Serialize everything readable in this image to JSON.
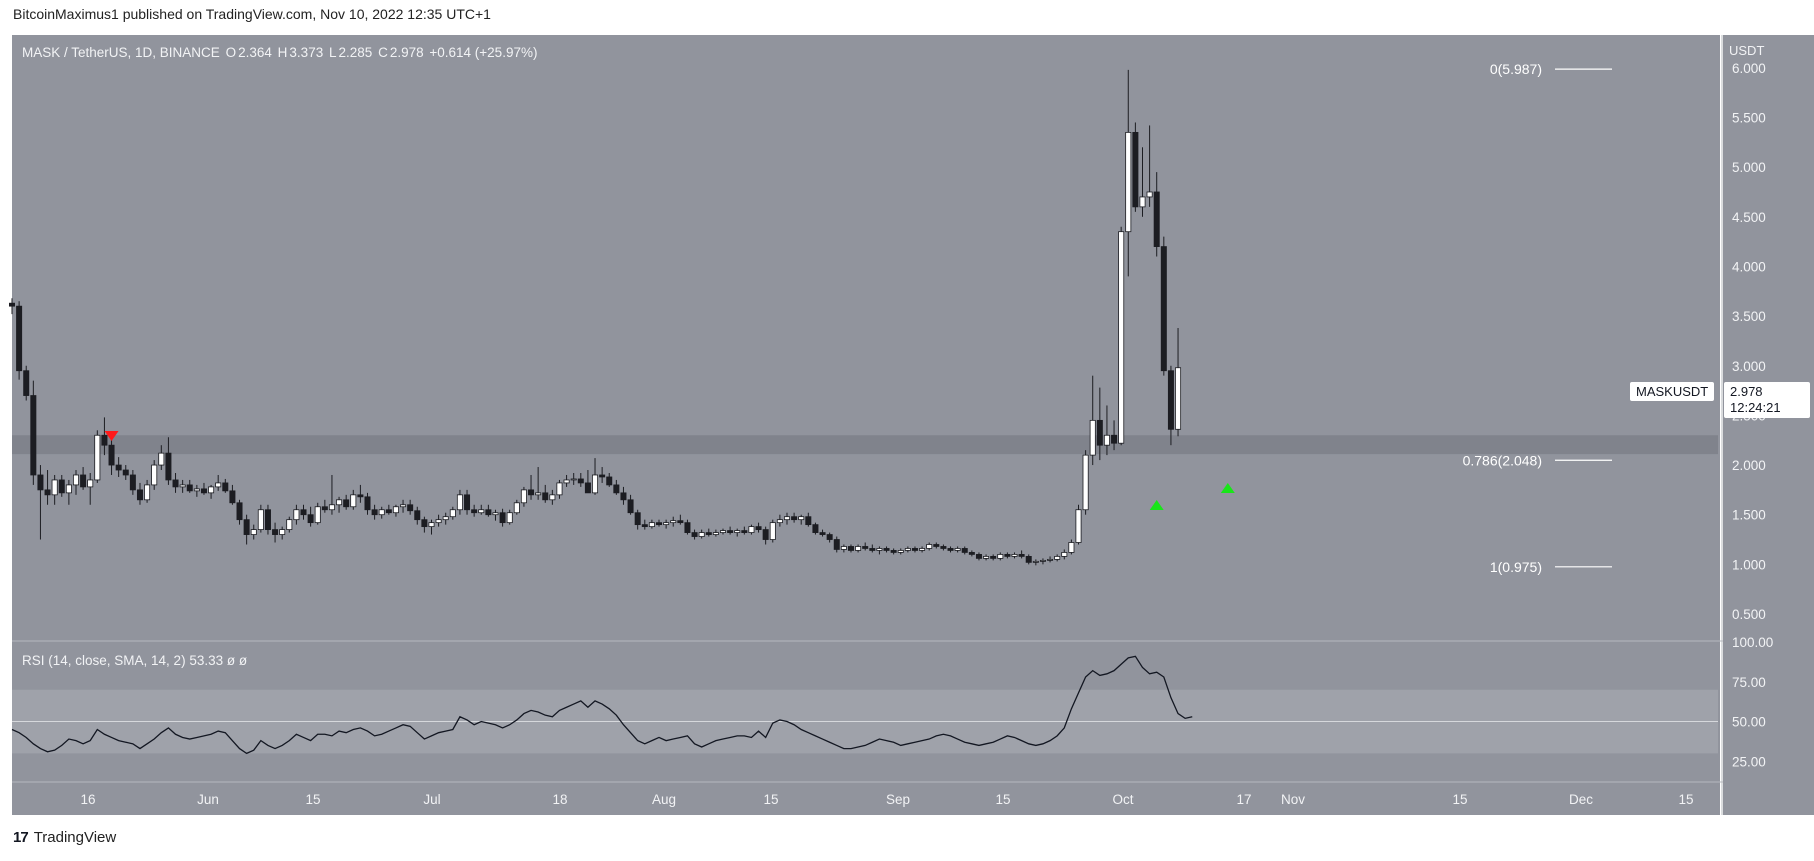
{
  "header": {
    "publisher": "BitcoinMaximus1 published on TradingView.com, Nov 10, 2022 12:35 UTC+1"
  },
  "footer": {
    "brand": "TradingView",
    "logo_text": "17"
  },
  "legend": {
    "symbol": "MASK / TetherUS, 1D, BINANCE",
    "o_label": "O",
    "o": "2.364",
    "h_label": "H",
    "h": "3.373",
    "l_label": "L",
    "l": "2.285",
    "c_label": "C",
    "c": "2.978",
    "change": "+0.614 (+25.97%)"
  },
  "rsi_legend": {
    "label": "RSI (14, close, SMA, 14, 2)",
    "value": "53.33",
    "na1": "ø",
    "na2": "ø"
  },
  "price_axis": {
    "unit": "USDT",
    "ticker": "MASKUSDT",
    "last": "2.978",
    "countdown": "12:24:21"
  },
  "fib": [
    {
      "label": "0(5.987)",
      "value": 5.987
    },
    {
      "label": "0.786(2.048)",
      "value": 2.048
    },
    {
      "label": "1(0.975)",
      "value": 0.975
    }
  ],
  "colors": {
    "panel": "#91949d",
    "up": "#ffffff",
    "down": "#1c1d22",
    "arrow_down": "#ff1a1a",
    "arrow_up": "#19e619",
    "support_zone": "#7d8089"
  },
  "chart_data": [
    {
      "type": "candlestick",
      "title": "MASK / TetherUS, 1D, BINANCE",
      "ylim": [
        0.5,
        6.4
      ],
      "y_ticks": [
        "0.500",
        "1.000",
        "1.500",
        "2.000",
        "2.500",
        "3.000",
        "3.500",
        "4.000",
        "4.500",
        "5.000",
        "5.500",
        "6.000"
      ],
      "x_ticks": [
        "16",
        "Jun",
        "15",
        "Jul",
        "18",
        "Aug",
        "15",
        "Sep",
        "15",
        "Oct",
        "17",
        "Nov",
        "15",
        "Dec",
        "15"
      ],
      "support_zone": [
        2.11,
        2.3
      ],
      "candles": [
        [
          3.63,
          3.68,
          3.52,
          3.6
        ],
        [
          3.6,
          3.65,
          2.86,
          2.95
        ],
        [
          2.95,
          3.0,
          2.65,
          2.7
        ],
        [
          2.7,
          2.85,
          1.8,
          1.9
        ],
        [
          1.9,
          2.0,
          1.25,
          1.75
        ],
        [
          1.75,
          1.95,
          1.6,
          1.7
        ],
        [
          1.7,
          1.9,
          1.6,
          1.85
        ],
        [
          1.85,
          1.9,
          1.68,
          1.72
        ],
        [
          1.72,
          1.85,
          1.6,
          1.8
        ],
        [
          1.8,
          1.95,
          1.7,
          1.9
        ],
        [
          1.9,
          1.98,
          1.75,
          1.78
        ],
        [
          1.78,
          1.92,
          1.6,
          1.85
        ],
        [
          1.85,
          2.35,
          1.82,
          2.3
        ],
        [
          2.3,
          2.48,
          2.1,
          2.2
        ],
        [
          2.2,
          2.25,
          1.9,
          2.0
        ],
        [
          2.0,
          2.08,
          1.88,
          1.95
        ],
        [
          1.95,
          2.0,
          1.85,
          1.9
        ],
        [
          1.9,
          1.95,
          1.7,
          1.75
        ],
        [
          1.75,
          1.82,
          1.6,
          1.65
        ],
        [
          1.65,
          1.85,
          1.62,
          1.8
        ],
        [
          1.8,
          2.05,
          1.75,
          2.0
        ],
        [
          2.0,
          2.2,
          1.95,
          2.12
        ],
        [
          2.12,
          2.28,
          1.8,
          1.85
        ],
        [
          1.85,
          1.92,
          1.72,
          1.78
        ],
        [
          1.78,
          1.85,
          1.72,
          1.8
        ],
        [
          1.8,
          1.85,
          1.72,
          1.74
        ],
        [
          1.74,
          1.8,
          1.68,
          1.76
        ],
        [
          1.76,
          1.82,
          1.7,
          1.72
        ],
        [
          1.72,
          1.8,
          1.66,
          1.78
        ],
        [
          1.78,
          1.9,
          1.74,
          1.82
        ],
        [
          1.82,
          1.86,
          1.72,
          1.74
        ],
        [
          1.74,
          1.8,
          1.6,
          1.62
        ],
        [
          1.62,
          1.65,
          1.4,
          1.45
        ],
        [
          1.45,
          1.5,
          1.2,
          1.3
        ],
        [
          1.3,
          1.4,
          1.25,
          1.35
        ],
        [
          1.35,
          1.6,
          1.32,
          1.55
        ],
        [
          1.55,
          1.6,
          1.3,
          1.35
        ],
        [
          1.35,
          1.42,
          1.22,
          1.3
        ],
        [
          1.3,
          1.38,
          1.25,
          1.35
        ],
        [
          1.35,
          1.48,
          1.32,
          1.45
        ],
        [
          1.45,
          1.6,
          1.4,
          1.55
        ],
        [
          1.55,
          1.6,
          1.45,
          1.5
        ],
        [
          1.5,
          1.58,
          1.38,
          1.42
        ],
        [
          1.42,
          1.62,
          1.4,
          1.58
        ],
        [
          1.58,
          1.65,
          1.52,
          1.55
        ],
        [
          1.55,
          1.9,
          1.5,
          1.6
        ],
        [
          1.6,
          1.68,
          1.52,
          1.65
        ],
        [
          1.65,
          1.7,
          1.55,
          1.58
        ],
        [
          1.58,
          1.75,
          1.55,
          1.7
        ],
        [
          1.7,
          1.8,
          1.62,
          1.68
        ],
        [
          1.68,
          1.72,
          1.5,
          1.55
        ],
        [
          1.55,
          1.6,
          1.45,
          1.5
        ],
        [
          1.5,
          1.58,
          1.46,
          1.55
        ],
        [
          1.55,
          1.6,
          1.5,
          1.52
        ],
        [
          1.52,
          1.6,
          1.48,
          1.58
        ],
        [
          1.58,
          1.65,
          1.52,
          1.6
        ],
        [
          1.6,
          1.65,
          1.5,
          1.54
        ],
        [
          1.54,
          1.58,
          1.4,
          1.45
        ],
        [
          1.45,
          1.48,
          1.32,
          1.38
        ],
        [
          1.38,
          1.45,
          1.3,
          1.42
        ],
        [
          1.42,
          1.5,
          1.38,
          1.45
        ],
        [
          1.45,
          1.52,
          1.4,
          1.48
        ],
        [
          1.48,
          1.58,
          1.45,
          1.55
        ],
        [
          1.55,
          1.75,
          1.5,
          1.7
        ],
        [
          1.7,
          1.75,
          1.5,
          1.55
        ],
        [
          1.55,
          1.6,
          1.48,
          1.52
        ],
        [
          1.52,
          1.6,
          1.5,
          1.55
        ],
        [
          1.55,
          1.6,
          1.48,
          1.5
        ],
        [
          1.5,
          1.55,
          1.44,
          1.52
        ],
        [
          1.52,
          1.56,
          1.38,
          1.42
        ],
        [
          1.42,
          1.55,
          1.4,
          1.52
        ],
        [
          1.52,
          1.65,
          1.5,
          1.62
        ],
        [
          1.62,
          1.78,
          1.58,
          1.75
        ],
        [
          1.75,
          1.9,
          1.65,
          1.7
        ],
        [
          1.7,
          1.98,
          1.65,
          1.72
        ],
        [
          1.72,
          1.8,
          1.62,
          1.65
        ],
        [
          1.65,
          1.75,
          1.6,
          1.7
        ],
        [
          1.7,
          1.85,
          1.66,
          1.82
        ],
        [
          1.82,
          1.9,
          1.78,
          1.85
        ],
        [
          1.85,
          1.92,
          1.8,
          1.86
        ],
        [
          1.86,
          1.92,
          1.78,
          1.82
        ],
        [
          1.82,
          1.95,
          1.75,
          1.72
        ],
        [
          1.72,
          2.07,
          1.7,
          1.9
        ],
        [
          1.9,
          1.98,
          1.82,
          1.88
        ],
        [
          1.88,
          1.92,
          1.78,
          1.8
        ],
        [
          1.8,
          1.85,
          1.7,
          1.72
        ],
        [
          1.72,
          1.78,
          1.6,
          1.65
        ],
        [
          1.65,
          1.7,
          1.5,
          1.52
        ],
        [
          1.52,
          1.55,
          1.35,
          1.4
        ],
        [
          1.4,
          1.45,
          1.35,
          1.38
        ],
        [
          1.38,
          1.45,
          1.36,
          1.42
        ],
        [
          1.42,
          1.45,
          1.38,
          1.4
        ],
        [
          1.4,
          1.45,
          1.36,
          1.42
        ],
        [
          1.42,
          1.48,
          1.38,
          1.44
        ],
        [
          1.44,
          1.5,
          1.4,
          1.42
        ],
        [
          1.42,
          1.45,
          1.3,
          1.32
        ],
        [
          1.32,
          1.35,
          1.25,
          1.28
        ],
        [
          1.28,
          1.35,
          1.26,
          1.32
        ],
        [
          1.32,
          1.36,
          1.28,
          1.3
        ],
        [
          1.3,
          1.35,
          1.28,
          1.32
        ],
        [
          1.32,
          1.36,
          1.3,
          1.34
        ],
        [
          1.34,
          1.38,
          1.3,
          1.32
        ],
        [
          1.32,
          1.36,
          1.28,
          1.34
        ],
        [
          1.34,
          1.38,
          1.3,
          1.32
        ],
        [
          1.32,
          1.4,
          1.3,
          1.38
        ],
        [
          1.38,
          1.42,
          1.32,
          1.35
        ],
        [
          1.35,
          1.38,
          1.2,
          1.25
        ],
        [
          1.25,
          1.45,
          1.22,
          1.42
        ],
        [
          1.42,
          1.5,
          1.38,
          1.45
        ],
        [
          1.45,
          1.52,
          1.4,
          1.48
        ],
        [
          1.48,
          1.52,
          1.42,
          1.45
        ],
        [
          1.45,
          1.5,
          1.4,
          1.48
        ],
        [
          1.48,
          1.52,
          1.38,
          1.4
        ],
        [
          1.4,
          1.42,
          1.3,
          1.32
        ],
        [
          1.32,
          1.35,
          1.28,
          1.3
        ],
        [
          1.3,
          1.32,
          1.22,
          1.25
        ],
        [
          1.25,
          1.28,
          1.12,
          1.15
        ],
        [
          1.15,
          1.2,
          1.12,
          1.18
        ],
        [
          1.18,
          1.2,
          1.12,
          1.14
        ],
        [
          1.14,
          1.2,
          1.12,
          1.18
        ],
        [
          1.18,
          1.22,
          1.14,
          1.16
        ],
        [
          1.16,
          1.2,
          1.12,
          1.14
        ],
        [
          1.14,
          1.18,
          1.1,
          1.16
        ],
        [
          1.16,
          1.18,
          1.12,
          1.14
        ],
        [
          1.14,
          1.16,
          1.1,
          1.12
        ],
        [
          1.12,
          1.16,
          1.1,
          1.14
        ],
        [
          1.14,
          1.18,
          1.12,
          1.16
        ],
        [
          1.16,
          1.18,
          1.12,
          1.14
        ],
        [
          1.14,
          1.18,
          1.12,
          1.16
        ],
        [
          1.16,
          1.22,
          1.14,
          1.2
        ],
        [
          1.2,
          1.22,
          1.16,
          1.18
        ],
        [
          1.18,
          1.2,
          1.14,
          1.16
        ],
        [
          1.16,
          1.18,
          1.12,
          1.14
        ],
        [
          1.14,
          1.18,
          1.12,
          1.16
        ],
        [
          1.16,
          1.18,
          1.1,
          1.12
        ],
        [
          1.12,
          1.14,
          1.08,
          1.1
        ],
        [
          1.1,
          1.12,
          1.04,
          1.06
        ],
        [
          1.06,
          1.1,
          1.04,
          1.08
        ],
        [
          1.08,
          1.1,
          1.04,
          1.06
        ],
        [
          1.06,
          1.12,
          1.04,
          1.1
        ],
        [
          1.1,
          1.12,
          1.06,
          1.08
        ],
        [
          1.08,
          1.12,
          1.06,
          1.1
        ],
        [
          1.1,
          1.14,
          1.06,
          1.08
        ],
        [
          1.08,
          1.1,
          1.0,
          1.02
        ],
        [
          1.02,
          1.05,
          0.99,
          1.03
        ],
        [
          1.03,
          1.06,
          1.0,
          1.04
        ],
        [
          1.04,
          1.08,
          1.02,
          1.05
        ],
        [
          1.05,
          1.1,
          1.03,
          1.08
        ],
        [
          1.08,
          1.15,
          1.05,
          1.12
        ],
        [
          1.12,
          1.25,
          1.1,
          1.22
        ],
        [
          1.22,
          1.6,
          1.2,
          1.55
        ],
        [
          1.55,
          2.15,
          1.5,
          2.1
        ],
        [
          2.1,
          2.9,
          2.0,
          2.45
        ],
        [
          2.45,
          2.78,
          2.05,
          2.2
        ],
        [
          2.2,
          2.6,
          2.1,
          2.3
        ],
        [
          2.3,
          2.45,
          2.15,
          2.22
        ],
        [
          2.22,
          4.4,
          2.2,
          4.35
        ],
        [
          4.35,
          5.98,
          3.9,
          5.35
        ],
        [
          5.35,
          5.45,
          4.55,
          4.6
        ],
        [
          4.6,
          5.2,
          4.5,
          4.7
        ],
        [
          4.7,
          5.42,
          4.6,
          4.75
        ],
        [
          4.75,
          4.95,
          4.1,
          4.2
        ],
        [
          4.2,
          4.3,
          2.9,
          2.95
        ],
        [
          2.95,
          3.0,
          2.2,
          2.36
        ],
        [
          2.36,
          3.38,
          2.29,
          2.98
        ]
      ]
    },
    {
      "type": "line",
      "title": "RSI (14, close, SMA, 14, 2)",
      "ylim": [
        12,
        100
      ],
      "y_ticks": [
        "25.00",
        "50.00",
        "75.00",
        "100.00"
      ],
      "bands": [
        30,
        70
      ],
      "midline": 50,
      "values": [
        45,
        43,
        40,
        36,
        33,
        31,
        32,
        35,
        39,
        38,
        36,
        38,
        45,
        42,
        40,
        38,
        37,
        36,
        33,
        36,
        39,
        43,
        46,
        42,
        40,
        39,
        40,
        41,
        42,
        44,
        43,
        38,
        33,
        30,
        32,
        38,
        35,
        33,
        35,
        38,
        42,
        40,
        38,
        42,
        42,
        41,
        44,
        43,
        45,
        46,
        44,
        41,
        42,
        44,
        46,
        48,
        47,
        43,
        39,
        41,
        43,
        44,
        45,
        53,
        51,
        48,
        50,
        49,
        48,
        46,
        48,
        51,
        55,
        57,
        56,
        54,
        53,
        57,
        59,
        61,
        63,
        59,
        63,
        61,
        58,
        54,
        48,
        43,
        38,
        36,
        38,
        40,
        38,
        39,
        40,
        41,
        36,
        34,
        36,
        38,
        39,
        40,
        41,
        41,
        40,
        44,
        40,
        49,
        51,
        50,
        48,
        45,
        43,
        41,
        39,
        37,
        35,
        33,
        33,
        34,
        35,
        37,
        39,
        38,
        37,
        35,
        36,
        37,
        38,
        39,
        41,
        42,
        41,
        39,
        37,
        36,
        35,
        36,
        37,
        39,
        41,
        40,
        38,
        36,
        35,
        36,
        38,
        41,
        46,
        58,
        68,
        78,
        82,
        79,
        80,
        82,
        86,
        90,
        91,
        84,
        80,
        81,
        78,
        65,
        55,
        52,
        53
      ]
    }
  ]
}
